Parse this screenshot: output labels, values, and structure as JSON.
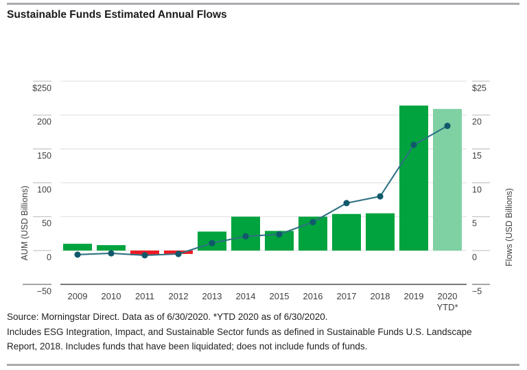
{
  "title": "Sustainable Funds Estimated Annual Flows",
  "footer": {
    "line1": "Source: Morningstar Direct. Data as of 6/30/2020. *YTD 2020 as of 6/30/2020.",
    "line2": "Includes ESG Integration, Impact, and Sustainable Sector funds as defined in Sustainable Funds U.S. Landscape",
    "line3": "Report, 2018. Includes funds that have been liquidated; does not include funds of funds."
  },
  "chart_data": {
    "type": "bar",
    "subtype": "dual-axis bar with line overlay",
    "categories": [
      "2009",
      "2010",
      "2011",
      "2012",
      "2013",
      "2014",
      "2015",
      "2016",
      "2017",
      "2018",
      "2019",
      "2020\nYTD*"
    ],
    "series": [
      {
        "name": "Estimated Annual Flows",
        "kind": "bar",
        "axis": "right",
        "unit": "USD Billions",
        "values": [
          1.0,
          0.8,
          -0.7,
          -0.5,
          2.8,
          5.0,
          2.9,
          5.0,
          5.4,
          5.5,
          21.4,
          20.9
        ],
        "bar_styles": [
          "positive",
          "positive",
          "negative",
          "negative",
          "positive",
          "positive",
          "positive",
          "positive",
          "positive",
          "positive",
          "positive",
          "ytd"
        ]
      },
      {
        "name": "AUM",
        "kind": "line",
        "axis": "left",
        "unit": "USD Billions",
        "values": [
          -6,
          -4,
          -7,
          -5,
          11,
          21,
          24,
          42,
          70,
          80,
          156,
          184
        ]
      }
    ],
    "left_axis": {
      "label": "AUM (USD Billions)",
      "tick_labels": [
        "$250",
        "200",
        "150",
        "100",
        "50",
        "0",
        "−50"
      ],
      "tick_values": [
        250,
        200,
        150,
        100,
        50,
        0,
        -50
      ],
      "range": [
        -50,
        250
      ]
    },
    "right_axis": {
      "label": "Flows (USD Billions)",
      "tick_labels": [
        "$25",
        "20",
        "15",
        "10",
        "5",
        "0",
        "−5"
      ],
      "tick_values": [
        25,
        20,
        15,
        10,
        5,
        0,
        -5
      ],
      "range": [
        -5,
        25
      ]
    },
    "grid": true,
    "legend": "none"
  },
  "colors": {
    "bar_positive": "#00a33e",
    "bar_negative": "#ee1c25",
    "bar_ytd": "#7fd0a2",
    "line": "#2f7183",
    "dot": "#10596b",
    "gridline": "#e4e4e6",
    "tick": "#c6c7c9",
    "axis_line": "#55565a",
    "outer_axis_segment": "#8c8e90",
    "rule": "#a8aaad",
    "axis_text": "#3e3e3e"
  }
}
